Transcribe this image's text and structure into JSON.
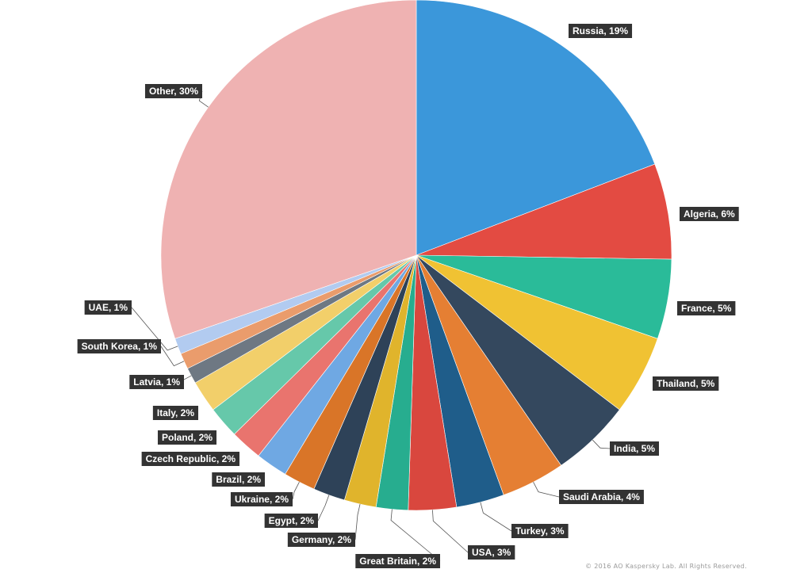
{
  "chart_data": {
    "type": "pie",
    "title": "",
    "slices": [
      {
        "label": "Russia, 19%",
        "name": "Russia",
        "value": 19,
        "color": "#3b97da"
      },
      {
        "label": "Algeria, 6%",
        "name": "Algeria",
        "value": 6,
        "color": "#e34b42"
      },
      {
        "label": "France, 5%",
        "name": "France",
        "value": 5,
        "color": "#2abb99"
      },
      {
        "label": "Thailand, 5%",
        "name": "Thailand",
        "value": 5,
        "color": "#f0c233"
      },
      {
        "label": "India, 5%",
        "name": "India",
        "value": 5,
        "color": "#34485e"
      },
      {
        "label": "Saudi Arabia, 4%",
        "name": "Saudi Arabia",
        "value": 4,
        "color": "#e57f33"
      },
      {
        "label": "Turkey, 3%",
        "name": "Turkey",
        "value": 3,
        "color": "#1f5d8a"
      },
      {
        "label": "USA, 3%",
        "name": "USA",
        "value": 3,
        "color": "#d9473e"
      },
      {
        "label": "Great Britain, 2%",
        "name": "Great Britain",
        "value": 2,
        "color": "#27ad8f"
      },
      {
        "label": "Germany, 2%",
        "name": "Germany",
        "value": 2,
        "color": "#e0b42c"
      },
      {
        "label": "Egypt, 2%",
        "name": "Egypt",
        "value": 2,
        "color": "#2e4258"
      },
      {
        "label": "Ukraine, 2%",
        "name": "Ukraine",
        "value": 2,
        "color": "#d97528"
      },
      {
        "label": "Brazil, 2%",
        "name": "Brazil",
        "value": 2,
        "color": "#6fa8e3"
      },
      {
        "label": "Czech Republic, 2%",
        "name": "Czech Republic",
        "value": 2,
        "color": "#e9746e"
      },
      {
        "label": "Poland, 2%",
        "name": "Poland",
        "value": 2,
        "color": "#66c8aa"
      },
      {
        "label": "Italy, 2%",
        "name": "Italy",
        "value": 2,
        "color": "#f2cf6a"
      },
      {
        "label": "Latvia, 1%",
        "name": "Latvia",
        "value": 1,
        "color": "#6e7883"
      },
      {
        "label": "South Korea, 1%",
        "name": "South Korea",
        "value": 1,
        "color": "#ea9c6c"
      },
      {
        "label": "UAE, 1%",
        "name": "UAE",
        "value": 1,
        "color": "#b2cbf0"
      },
      {
        "label": "Other, 30%",
        "name": "Other",
        "value": 30,
        "color": "#efb2b2"
      }
    ],
    "legend": "none",
    "label_style": {
      "background": "#333333",
      "text_color": "#ffffff",
      "leader_line_color": "#555555"
    }
  },
  "footer": {
    "copyright": "© 2016 AO Kaspersky Lab. All Rights Reserved."
  }
}
